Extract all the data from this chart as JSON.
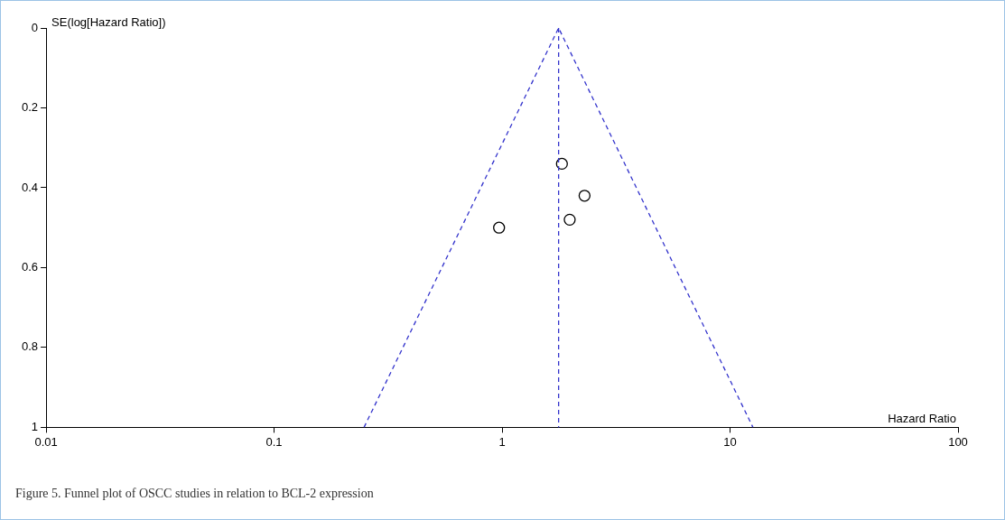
{
  "chart_data": {
    "type": "scatter",
    "ylabel": "SE(log[Hazard Ratio])",
    "xlabel": "Hazard Ratio",
    "annotations": [
      "Figure 5. Funnel plot of OSCC studies in relation to BCL-2 expression"
    ],
    "log": "x",
    "xlim": [
      0.01,
      100
    ],
    "xticks": [
      0.01,
      0.1,
      1,
      10,
      100
    ],
    "ylim": [
      1,
      0
    ],
    "yticks": [
      {
        "value": 0,
        "label": "0"
      },
      {
        "value": 0.2,
        "label": "0.2"
      },
      {
        "value": 0.4,
        "label": "0.4"
      },
      {
        "value": 0.6,
        "label": "0.6"
      },
      {
        "value": 0.8,
        "label": "0.8"
      },
      {
        "value": 1,
        "label": "1"
      }
    ],
    "grid": false,
    "legend": false,
    "ref_lines": [
      {
        "axis": "x",
        "value": 1.77,
        "color": "#3333cc",
        "line_style": "dashed"
      }
    ],
    "series": [
      {
        "type": "scatter",
        "color": "#000000",
        "marker": "circle",
        "x": [
          1.83,
          2.3,
          1.98,
          0.97
        ],
        "values": [
          0.34,
          0.42,
          0.48,
          0.5
        ]
      },
      {
        "type": "line",
        "color": "#3333cc",
        "marker": "none",
        "line_style": "dashed",
        "x": [
          0.248,
          1.77,
          12.6
        ],
        "values": [
          1,
          0,
          1
        ]
      }
    ]
  }
}
